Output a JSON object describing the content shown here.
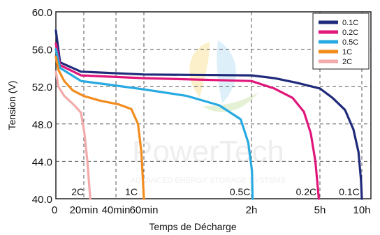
{
  "chart_data": {
    "type": "line",
    "title": "",
    "xlabel": "Temps de Décharge",
    "ylabel": "Tension (V)",
    "ylim": [
      40,
      60
    ],
    "y_ticks": [
      "40.0",
      "44.0",
      "48.0",
      "52.0",
      "56.0",
      "60.0"
    ],
    "x_ticks": [
      "0",
      "20min",
      "40min",
      "60min",
      "2h",
      "5h",
      "10h"
    ],
    "grid": true,
    "legend_position": "top-right",
    "curve_labels": [
      "2C",
      "1C",
      "0.5C",
      "0.2C",
      "0.1C"
    ],
    "watermark": {
      "text": "PowerTech",
      "subtext": "ADVANCED ENERGY STORAGE SYSTEMS"
    },
    "series": [
      {
        "name": "0.1C",
        "color": "#1f2a7a",
        "points": [
          [
            0,
            58
          ],
          [
            0.05,
            54.6
          ],
          [
            0.3,
            53.6
          ],
          [
            1.0,
            53.3
          ],
          [
            2.0,
            53.2
          ],
          [
            3.0,
            52.9
          ],
          [
            4.0,
            52.4
          ],
          [
            5.0,
            51.8
          ],
          [
            6.5,
            50.8
          ],
          [
            8.0,
            49.5
          ],
          [
            9.0,
            47.4
          ],
          [
            9.6,
            45.0
          ],
          [
            9.9,
            42.0
          ],
          [
            10.0,
            40
          ]
        ]
      },
      {
        "name": "0.2C",
        "color": "#e0167a",
        "points": [
          [
            0,
            56.6
          ],
          [
            0.05,
            54.3
          ],
          [
            0.3,
            53.2
          ],
          [
            1.0,
            52.9
          ],
          [
            2.0,
            52.6
          ],
          [
            3.0,
            51.8
          ],
          [
            3.8,
            50.8
          ],
          [
            4.3,
            49.3
          ],
          [
            4.6,
            47.0
          ],
          [
            4.8,
            44.0
          ],
          [
            4.95,
            40
          ]
        ]
      },
      {
        "name": "0.5C",
        "color": "#27a9e1",
        "points": [
          [
            0,
            56.0
          ],
          [
            0.05,
            54.0
          ],
          [
            0.3,
            52.6
          ],
          [
            0.6,
            52.2
          ],
          [
            1.0,
            51.7
          ],
          [
            1.4,
            51.0
          ],
          [
            1.7,
            50.0
          ],
          [
            1.9,
            48.5
          ],
          [
            1.97,
            46.0
          ],
          [
            2.02,
            43.0
          ],
          [
            2.05,
            40
          ]
        ]
      },
      {
        "name": "1C",
        "color": "#f28c1e",
        "points": [
          [
            0,
            55.2
          ],
          [
            0.03,
            53.8
          ],
          [
            0.1,
            52.6
          ],
          [
            0.2,
            51.6
          ],
          [
            0.33,
            51.0
          ],
          [
            0.5,
            50.5
          ],
          [
            0.7,
            50.1
          ],
          [
            0.85,
            49.6
          ],
          [
            0.93,
            48.0
          ],
          [
            0.97,
            45.0
          ],
          [
            1.0,
            40
          ]
        ]
      },
      {
        "name": "2C",
        "color": "#f2aaaa",
        "points": [
          [
            0,
            53.6
          ],
          [
            0.03,
            52.0
          ],
          [
            0.1,
            51.0
          ],
          [
            0.22,
            50.0
          ],
          [
            0.3,
            49.2
          ],
          [
            0.34,
            47.0
          ],
          [
            0.37,
            44.0
          ],
          [
            0.4,
            40
          ]
        ]
      }
    ]
  }
}
